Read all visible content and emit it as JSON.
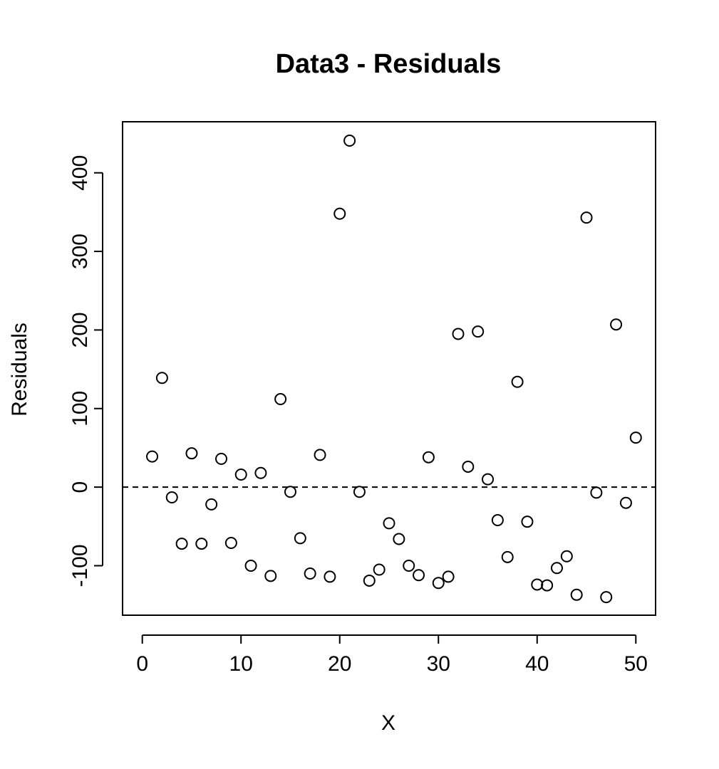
{
  "chart_data": {
    "type": "scatter",
    "title": "Data3 - Residuals",
    "xlabel": "X",
    "ylabel": "Residuals",
    "xlim": [
      -2,
      52
    ],
    "ylim": [
      -163,
      465
    ],
    "x_ticks": [
      0,
      10,
      20,
      30,
      40,
      50
    ],
    "y_ticks": [
      -100,
      0,
      100,
      200,
      300,
      400
    ],
    "reference_line": {
      "y": 0,
      "style": "dashed"
    },
    "grid": false,
    "marker": "open-circle",
    "x": [
      1,
      2,
      3,
      4,
      5,
      6,
      7,
      8,
      9,
      10,
      11,
      12,
      13,
      14,
      15,
      16,
      17,
      18,
      19,
      20,
      21,
      22,
      23,
      24,
      25,
      26,
      27,
      28,
      29,
      30,
      31,
      32,
      33,
      34,
      35,
      36,
      37,
      38,
      39,
      40,
      41,
      42,
      43,
      44,
      45,
      46,
      47,
      48,
      49,
      50
    ],
    "y": [
      39,
      139,
      -13,
      -72,
      43,
      -72,
      -22,
      36,
      -71,
      16,
      -100,
      18,
      -113,
      112,
      -6,
      -65,
      -110,
      41,
      -114,
      348,
      441,
      -6,
      -119,
      -105,
      -46,
      -66,
      -100,
      -112,
      38,
      -122,
      -114,
      195,
      26,
      198,
      10,
      -42,
      -89,
      134,
      -44,
      -124,
      -125,
      -103,
      -88,
      -137,
      343,
      -7,
      -140,
      207,
      -20,
      63
    ]
  }
}
